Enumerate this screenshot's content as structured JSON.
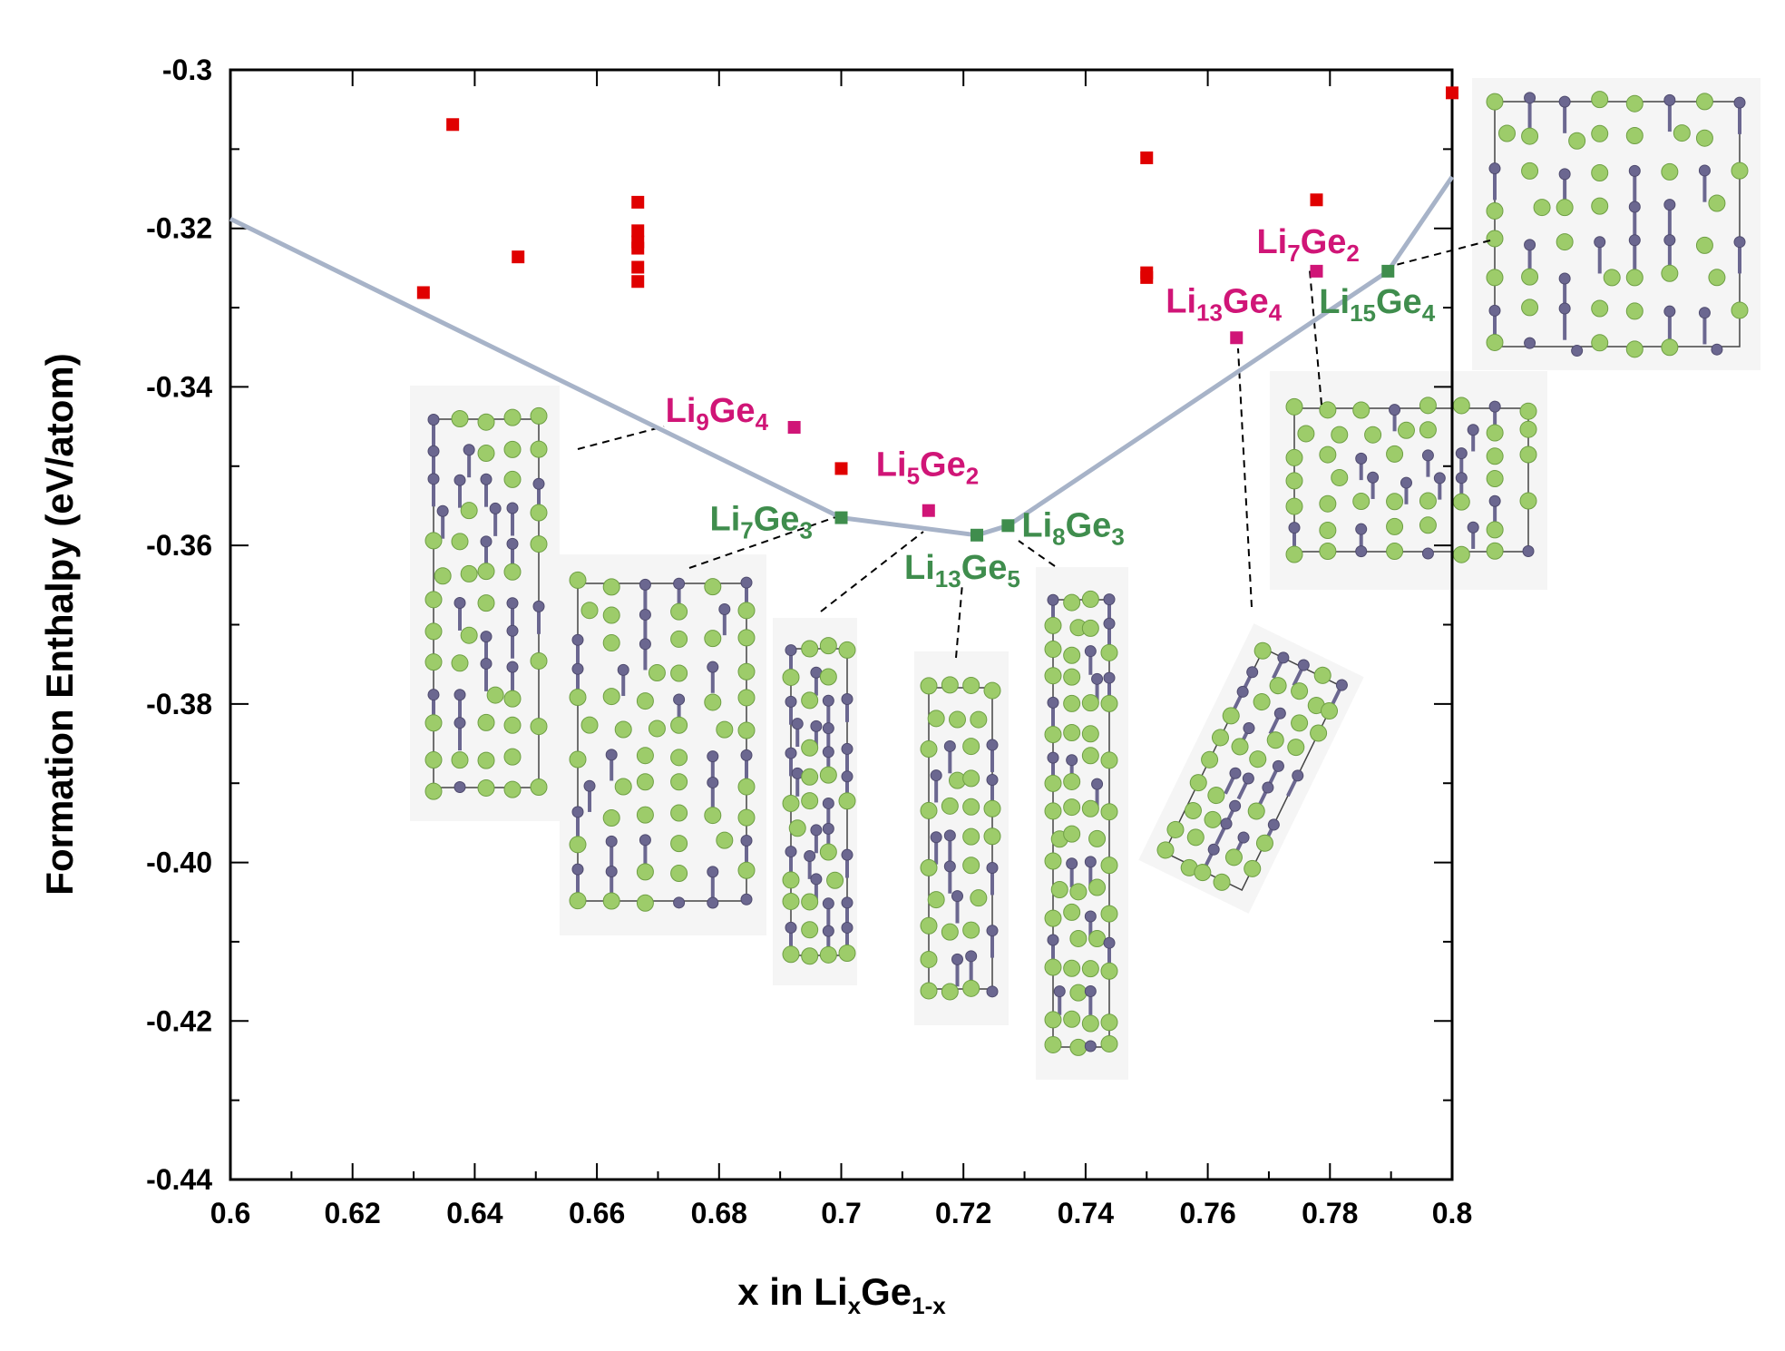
{
  "chart_data": {
    "type": "scatter",
    "xlabel": {
      "prefix": "x in Li",
      "sub1": "x",
      "mid": "Ge",
      "sub2": "1-x"
    },
    "ylabel": "Formation Enthalpy (eV/atom)",
    "xlim": [
      0.6,
      0.8
    ],
    "ylim": [
      -0.44,
      -0.3
    ],
    "x_ticks": [
      0.6,
      0.62,
      0.64,
      0.66,
      0.68,
      0.7,
      0.72,
      0.74,
      0.76,
      0.78,
      0.8
    ],
    "x_tick_labels": [
      "0.6",
      "0.62",
      "0.64",
      "0.66",
      "0.68",
      "0.7",
      "0.72",
      "0.74",
      "0.76",
      "0.78",
      "0.8"
    ],
    "y_ticks": [
      -0.3,
      -0.32,
      -0.34,
      -0.36,
      -0.38,
      -0.4,
      -0.42,
      -0.44
    ],
    "y_tick_labels": [
      "-0.3",
      "-0.32",
      "-0.34",
      "-0.36",
      "-0.38",
      "-0.40",
      "-0.42",
      "-0.44"
    ],
    "hull_line": {
      "color": "#a7b3c8",
      "points": [
        [
          0.6,
          -0.3188
        ],
        [
          0.7,
          -0.3565
        ],
        [
          0.7222,
          -0.3587
        ],
        [
          0.7273,
          -0.3575
        ],
        [
          0.7895,
          -0.3254
        ],
        [
          0.8,
          -0.3135
        ]
      ]
    },
    "unstable_points": {
      "color": "#e00000",
      "points": [
        [
          0.6316,
          -0.3281
        ],
        [
          0.6364,
          -0.3069
        ],
        [
          0.6471,
          -0.3236
        ],
        [
          0.6667,
          -0.3167
        ],
        [
          0.6667,
          -0.3203
        ],
        [
          0.6667,
          -0.3217
        ],
        [
          0.6667,
          -0.3225
        ],
        [
          0.6667,
          -0.3249
        ],
        [
          0.6667,
          -0.3267
        ],
        [
          0.7,
          -0.3503
        ],
        [
          0.75,
          -0.3111
        ],
        [
          0.75,
          -0.3256
        ],
        [
          0.75,
          -0.3262
        ],
        [
          0.7778,
          -0.3164
        ],
        [
          0.8,
          -0.3029
        ]
      ]
    },
    "labeled_phases": [
      {
        "base": "Li",
        "n1": "9",
        "mid": "Ge",
        "n2": "4",
        "x": 0.6923,
        "y": -0.3451,
        "stable": false,
        "color": "#d01577"
      },
      {
        "base": "Li",
        "n1": "5",
        "mid": "Ge",
        "n2": "2",
        "x": 0.7143,
        "y": -0.3556,
        "stable": false,
        "color": "#d01577"
      },
      {
        "base": "Li",
        "n1": "13",
        "mid": "Ge",
        "n2": "4",
        "x": 0.7647,
        "y": -0.3338,
        "stable": false,
        "color": "#d01577"
      },
      {
        "base": "Li",
        "n1": "7",
        "mid": "Ge",
        "n2": "2",
        "x": 0.7778,
        "y": -0.3254,
        "stable": false,
        "color": "#d01577"
      },
      {
        "base": "Li",
        "n1": "7",
        "mid": "Ge",
        "n2": "3",
        "x": 0.7,
        "y": -0.3565,
        "stable": true,
        "color": "#3f8d4d"
      },
      {
        "base": "Li",
        "n1": "13",
        "mid": "Ge",
        "n2": "5",
        "x": 0.7222,
        "y": -0.3587,
        "stable": true,
        "color": "#3f8d4d"
      },
      {
        "base": "Li",
        "n1": "8",
        "mid": "Ge",
        "n2": "3",
        "x": 0.7273,
        "y": -0.3575,
        "stable": true,
        "color": "#3f8d4d"
      },
      {
        "base": "Li",
        "n1": "15",
        "mid": "Ge",
        "n2": "4",
        "x": 0.7895,
        "y": -0.3254,
        "stable": true,
        "color": "#3f8d4d"
      }
    ],
    "grid": false,
    "legend": "none"
  },
  "colors": {
    "li_atom": "#9dcc6a",
    "ge_atom": "#6b6790",
    "structure_panel": "#f5f5f5"
  },
  "structure_insets": [
    {
      "phase": "Li9Ge4",
      "rotation_deg": 0
    },
    {
      "phase": "Li7Ge3",
      "rotation_deg": 0
    },
    {
      "phase": "Li5Ge2",
      "rotation_deg": 0
    },
    {
      "phase": "Li13Ge5",
      "rotation_deg": 0
    },
    {
      "phase": "Li8Ge3",
      "rotation_deg": 0
    },
    {
      "phase": "Li13Ge4",
      "rotation_deg": 26
    },
    {
      "phase": "Li7Ge2",
      "rotation_deg": 0
    },
    {
      "phase": "Li15Ge4",
      "rotation_deg": 0
    }
  ]
}
